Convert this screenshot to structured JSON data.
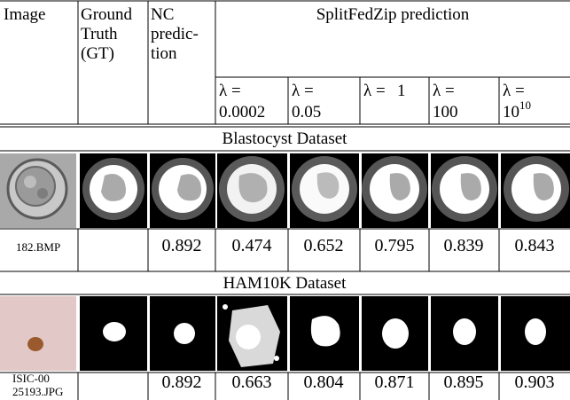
{
  "header": {
    "image": "Image",
    "gt": [
      "Ground",
      "Truth",
      "(GT)"
    ],
    "nc": [
      "NC",
      "predic-",
      "tion"
    ],
    "split": "SplitFedZip prediction",
    "lambdas": [
      {
        "symbol": "λ =",
        "value": "0.0002"
      },
      {
        "symbol": "λ =",
        "value": "0.05"
      },
      {
        "symbol": "λ =",
        "value": "1"
      },
      {
        "symbol": "λ =",
        "value": "100"
      },
      {
        "symbol": "λ =",
        "value": "10",
        "exp": "10"
      }
    ]
  },
  "sections": [
    {
      "title": "Blastocyst Dataset",
      "filename": [
        "182.BMP"
      ],
      "scores": [
        0.892,
        0.474,
        0.652,
        0.795,
        0.839,
        0.843
      ]
    },
    {
      "title": "HAM10K Dataset",
      "filename": [
        "ISIC-00",
        "25193.JPG"
      ],
      "scores": [
        0.892,
        0.663,
        0.804,
        0.871,
        0.895,
        0.903
      ]
    }
  ]
}
